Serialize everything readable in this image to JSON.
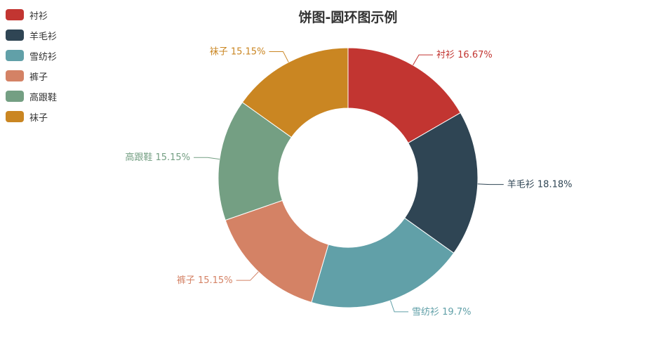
{
  "chart_data": {
    "type": "pie",
    "variant": "donut",
    "title": "饼图-圆环图示例",
    "legend_position": "top-left",
    "categories": [
      "衬衫",
      "羊毛衫",
      "雪纺衫",
      "裤子",
      "高跟鞋",
      "袜子"
    ],
    "percent_labels": [
      "16.67%",
      "18.18%",
      "19.7%",
      "15.15%",
      "15.15%",
      "15.15%"
    ],
    "values": [
      16.67,
      18.18,
      19.7,
      15.15,
      15.15,
      15.15
    ],
    "colors": [
      "#c23531",
      "#2f4554",
      "#61a0a8",
      "#d48265",
      "#749f83",
      "#ca8622"
    ]
  }
}
